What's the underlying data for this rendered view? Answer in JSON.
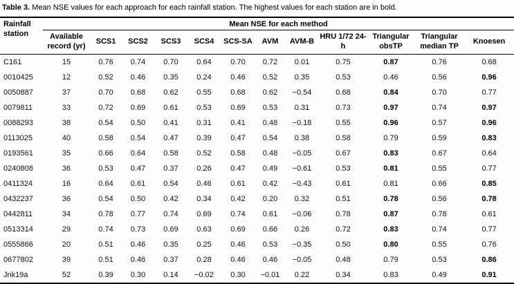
{
  "caption": {
    "label": "Table 3.",
    "text": " Mean NSE values for each approach for each rainfall station. The highest values for each station are in bold."
  },
  "colors": {
    "text": "#111111",
    "rule": "#000000",
    "background": "#fcfcfc"
  },
  "table": {
    "corner_header": "Rainfall station",
    "banner": "Mean NSE for each method",
    "subheaders": [
      "Available record (yr)",
      "SCS1",
      "SCS2",
      "SCS3",
      "SCS4",
      "SCS-SA",
      "AVM",
      "AVM-B",
      "HRU 1/72 24-h",
      "Triangular obsTP",
      "Triangular median TP",
      "Knoesen"
    ],
    "rows": [
      {
        "station": "C161",
        "record": "15",
        "values": [
          "0.76",
          "0.74",
          "0.70",
          "0.64",
          "0.70",
          "0.72",
          "0.01",
          "0.75",
          "0.87",
          "0.76",
          "0.68"
        ],
        "bold": [
          8
        ]
      },
      {
        "station": "0010425",
        "record": "12",
        "values": [
          "0.52",
          "0.46",
          "0.35",
          "0.24",
          "0.46",
          "0.52",
          "0.35",
          "0.53",
          "0.46",
          "0.56",
          "0.96"
        ],
        "bold": [
          10
        ]
      },
      {
        "station": "0050887",
        "record": "37",
        "values": [
          "0.70",
          "0.68",
          "0.62",
          "0.55",
          "0.68",
          "0.62",
          "−0.54",
          "0.68",
          "0.84",
          "0.70",
          "0.77"
        ],
        "bold": [
          8
        ]
      },
      {
        "station": "0079811",
        "record": "33",
        "values": [
          "0.72",
          "0.69",
          "0.61",
          "0.53",
          "0.69",
          "0.53",
          "0.31",
          "0.73",
          "0.97",
          "0.74",
          "0.97"
        ],
        "bold": [
          8,
          10
        ]
      },
      {
        "station": "0088293",
        "record": "38",
        "values": [
          "0.54",
          "0.50",
          "0.41",
          "0.31",
          "0.41",
          "0.48",
          "−0.18",
          "0.55",
          "0.96",
          "0.57",
          "0.96"
        ],
        "bold": [
          8,
          10
        ]
      },
      {
        "station": "0113025",
        "record": "40",
        "values": [
          "0.58",
          "0.54",
          "0.47",
          "0.39",
          "0.47",
          "0.54",
          "0.38",
          "0.58",
          "0.79",
          "0.59",
          "0.83"
        ],
        "bold": [
          10
        ]
      },
      {
        "station": "0193561",
        "record": "35",
        "values": [
          "0.66",
          "0.64",
          "0.58",
          "0.52",
          "0.58",
          "0.48",
          "−0.05",
          "0.67",
          "0.83",
          "0.67",
          "0.64"
        ],
        "bold": [
          8
        ]
      },
      {
        "station": "0240808",
        "record": "36",
        "values": [
          "0.53",
          "0.47",
          "0.37",
          "0.26",
          "0.47",
          "0.49",
          "−0.61",
          "0.53",
          "0.81",
          "0.55",
          "0.77"
        ],
        "bold": [
          8
        ]
      },
      {
        "station": "0411324",
        "record": "16",
        "values": [
          "0.64",
          "0.61",
          "0.54",
          "0.46",
          "0.61",
          "0.42",
          "−0.43",
          "0.61",
          "0.81",
          "0.66",
          "0.85"
        ],
        "bold": [
          10
        ]
      },
      {
        "station": "0432237",
        "record": "36",
        "values": [
          "0.54",
          "0.50",
          "0.42",
          "0.34",
          "0.42",
          "0.20",
          "0.32",
          "0.51",
          "0.78",
          "0.56",
          "0.78"
        ],
        "bold": [
          8,
          10
        ]
      },
      {
        "station": "0442811",
        "record": "34",
        "values": [
          "0.78",
          "0.77",
          "0.74",
          "0.69",
          "0.74",
          "0.61",
          "−0.06",
          "0.78",
          "0.87",
          "0.78",
          "0.61"
        ],
        "bold": [
          8
        ]
      },
      {
        "station": "0513314",
        "record": "29",
        "values": [
          "0.74",
          "0.73",
          "0.69",
          "0.63",
          "0.69",
          "0.66",
          "0.26",
          "0.72",
          "0.83",
          "0.74",
          "0.77"
        ],
        "bold": [
          8
        ]
      },
      {
        "station": "0555866",
        "record": "20",
        "values": [
          "0.51",
          "0.46",
          "0.35",
          "0.25",
          "0.46",
          "0.53",
          "−0.35",
          "0.50",
          "0.80",
          "0.55",
          "0.76"
        ],
        "bold": [
          8
        ]
      },
      {
        "station": "0677802",
        "record": "39",
        "values": [
          "0.51",
          "0.46",
          "0.37",
          "0.28",
          "0.46",
          "0.46",
          "−0.05",
          "0.48",
          "0.79",
          "0.53",
          "0.86"
        ],
        "bold": [
          10
        ]
      },
      {
        "station": "Jnk19a",
        "record": "52",
        "values": [
          "0.39",
          "0.30",
          "0.14",
          "−0.02",
          "0.30",
          "−0.01",
          "0.22",
          "0.34",
          "0.83",
          "0.49",
          "0.91"
        ],
        "bold": [
          10
        ]
      }
    ]
  }
}
